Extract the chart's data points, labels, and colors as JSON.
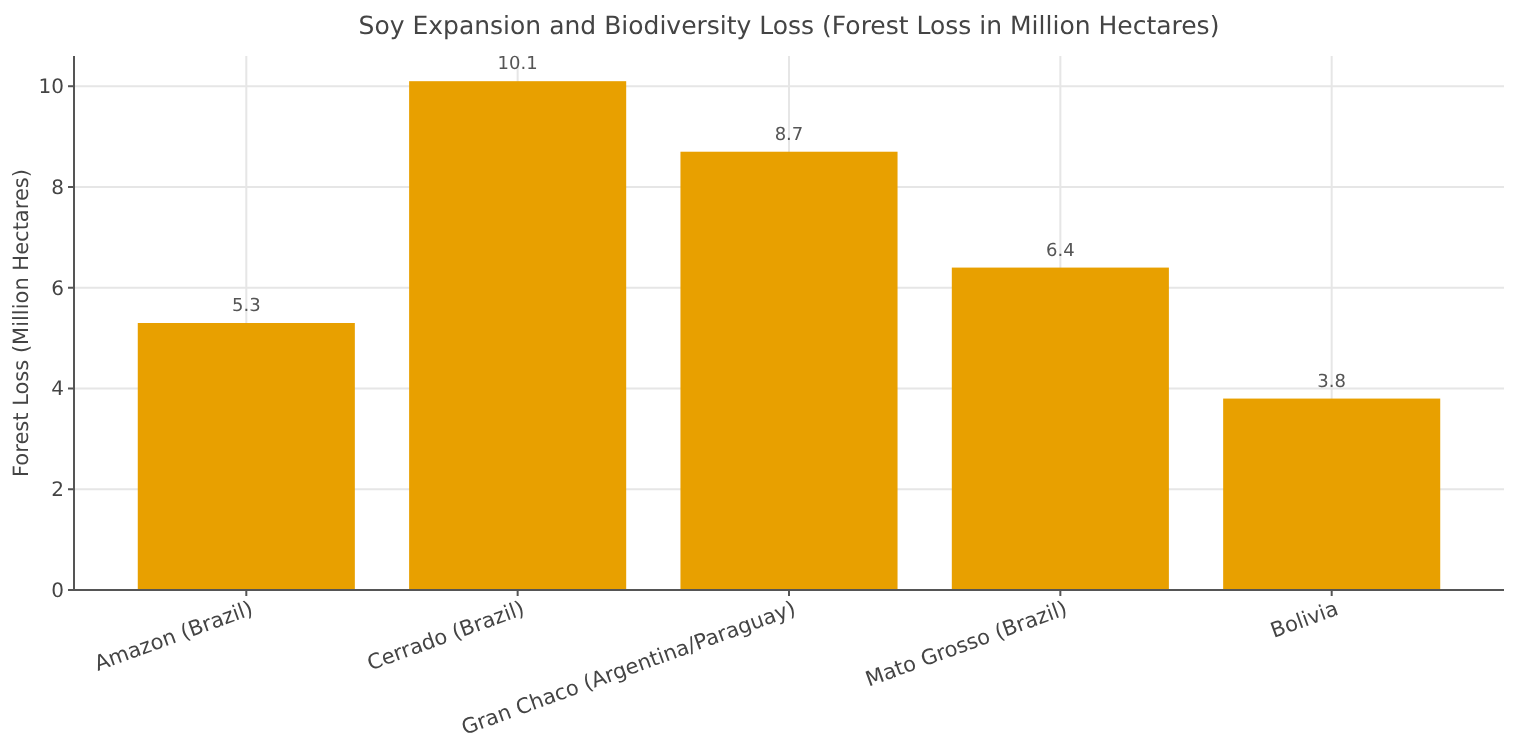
{
  "chart_data": {
    "type": "bar",
    "title": "Soy Expansion and Biodiversity Loss (Forest Loss in Million Hectares)",
    "ylabel": "Forest Loss (Million Hectares)",
    "categories": [
      "Amazon (Brazil)",
      "Cerrado (Brazil)",
      "Gran Chaco (Argentina/Paraguay)",
      "Mato Grosso (Brazil)",
      "Bolivia"
    ],
    "values": [
      5.3,
      10.1,
      8.7,
      6.4,
      3.8
    ],
    "color": "#e8a000",
    "ylim": [
      0,
      10.6
    ],
    "yticks": [
      0,
      2,
      4,
      6,
      8,
      10
    ],
    "grid": true,
    "data_labels": true
  }
}
